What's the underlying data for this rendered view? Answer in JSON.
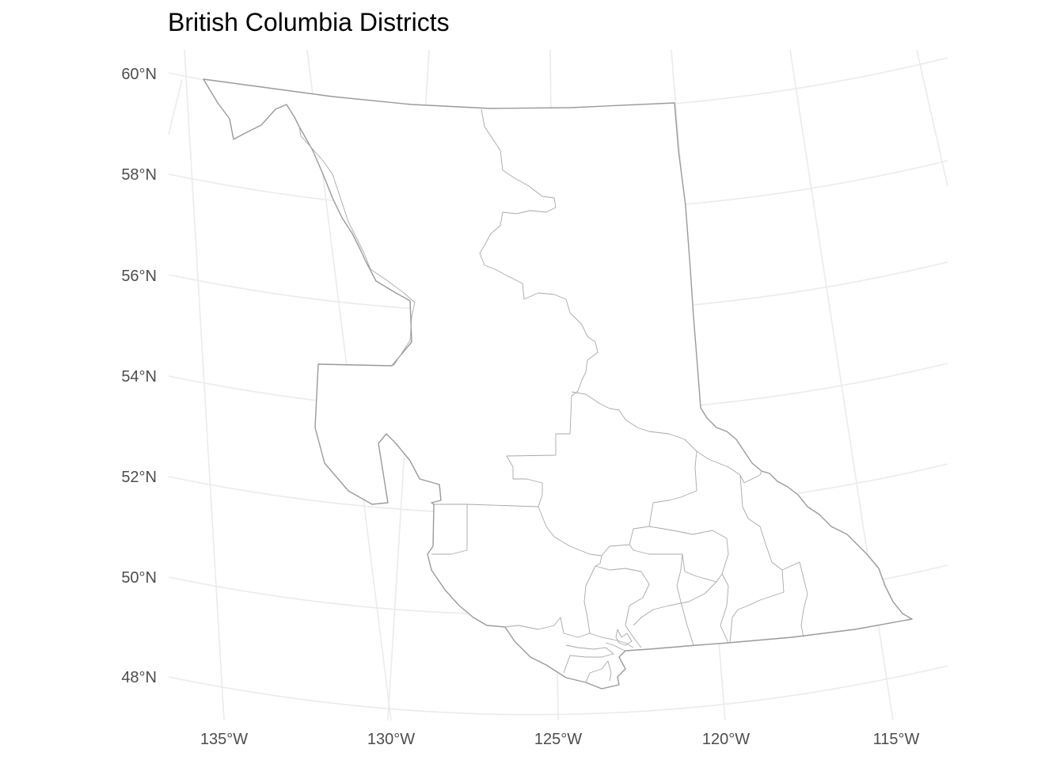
{
  "title": "British Columbia Districts",
  "colors": {
    "background": "#ffffff",
    "graticule": "#ebebeb",
    "border": "#9a9a9a",
    "axis_text": "#4d4d4d"
  },
  "axes": {
    "lat_labels": [
      "60°N",
      "58°N",
      "56°N",
      "54°N",
      "52°N",
      "50°N",
      "48°N"
    ],
    "lon_labels": [
      "135°W",
      "130°W",
      "125°W",
      "120°W",
      "115°W"
    ]
  },
  "map": {
    "region": "British Columbia",
    "layer": "districts"
  }
}
